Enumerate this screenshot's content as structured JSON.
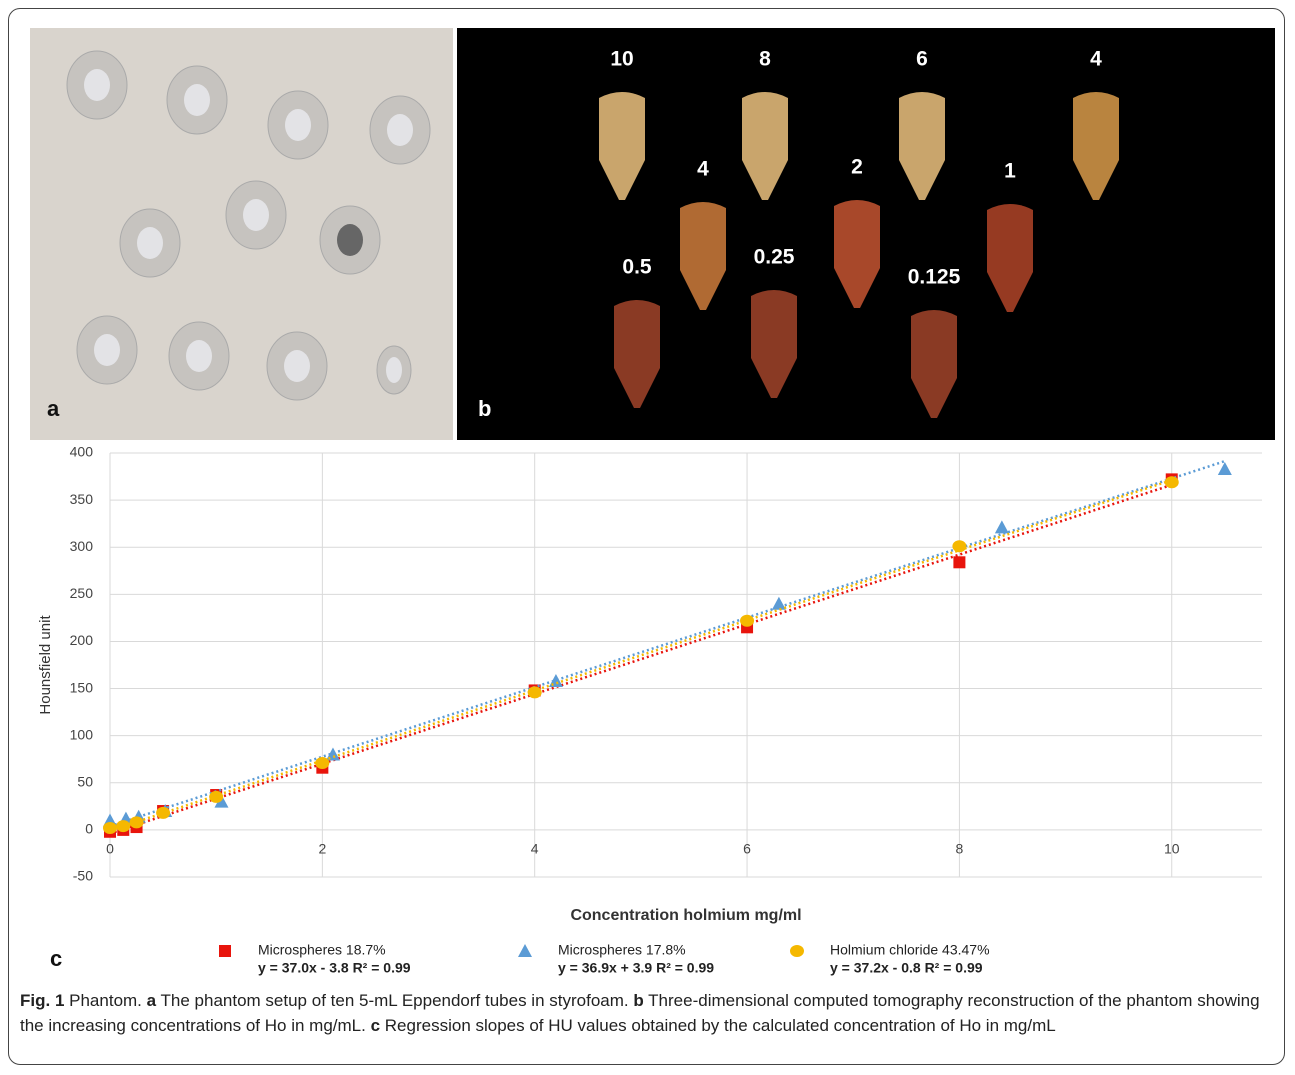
{
  "panel_a": {
    "letter": "a"
  },
  "panel_b": {
    "letter": "b",
    "labels": [
      "10",
      "8",
      "6",
      "4",
      "4",
      "2",
      "1",
      "0.5",
      "0.25",
      "0.125"
    ]
  },
  "chart_data": {
    "type": "scatter",
    "panel_letter": "c",
    "xlabel": "Concentration holmium mg/ml",
    "ylabel": "Hounsfield unit",
    "xlim": [
      0,
      10.85
    ],
    "ylim": [
      -50,
      400
    ],
    "xticks": [
      0,
      2,
      4,
      6,
      8,
      10
    ],
    "yticks": [
      -50,
      0,
      50,
      100,
      150,
      200,
      250,
      300,
      350,
      400
    ],
    "grid": true,
    "series": [
      {
        "name": "Microspheres 18.7%",
        "color": "#e8140c",
        "marker": "square",
        "x": [
          0,
          0.125,
          0.25,
          0.5,
          1,
          2,
          4,
          6,
          8,
          10
        ],
        "values": [
          -2,
          0,
          3,
          20,
          37,
          66,
          148,
          215,
          284,
          372
        ],
        "trend": {
          "slope": 37.0,
          "intercept": -3.8,
          "label": "y = 37.0x - 3.8 R² = 0.99"
        }
      },
      {
        "name": "Microspheres 17.8%",
        "color": "#5b9bd5",
        "marker": "triangle",
        "x": [
          0,
          0.15,
          0.27,
          0.52,
          1.05,
          2.1,
          4.2,
          6.3,
          8.4,
          10.5
        ],
        "values": [
          10,
          12,
          14,
          20,
          30,
          80,
          158,
          240,
          321,
          383
        ],
        "trend": {
          "slope": 36.9,
          "intercept": 3.9,
          "label": "y = 36.9x + 3.9 R² = 0.99"
        }
      },
      {
        "name": "Holmium chloride 43.47%",
        "color": "#f5b800",
        "marker": "circle",
        "x": [
          0,
          0.125,
          0.25,
          0.5,
          1,
          2,
          4,
          6,
          8,
          10
        ],
        "values": [
          2,
          4,
          8,
          18,
          35,
          71,
          146,
          222,
          301,
          369
        ],
        "trend": {
          "slope": 37.2,
          "intercept": -0.8,
          "label": "y = 37.2x - 0.8 R² = 0.99"
        }
      }
    ]
  },
  "caption": {
    "figure": "Fig. 1",
    "title": "Phantom.",
    "parts": [
      {
        "letter": "a",
        "text": "The phantom setup of ten 5-mL Eppendorf tubes in styrofoam."
      },
      {
        "letter": "b",
        "text": "Three-dimensional computed tomography reconstruction of the phantom showing the increasing concentrations of Ho in mg/mL."
      },
      {
        "letter": "c",
        "text": "Regression slopes of HU values obtained by the calculated concentration of Ho in mg/mL"
      }
    ]
  }
}
